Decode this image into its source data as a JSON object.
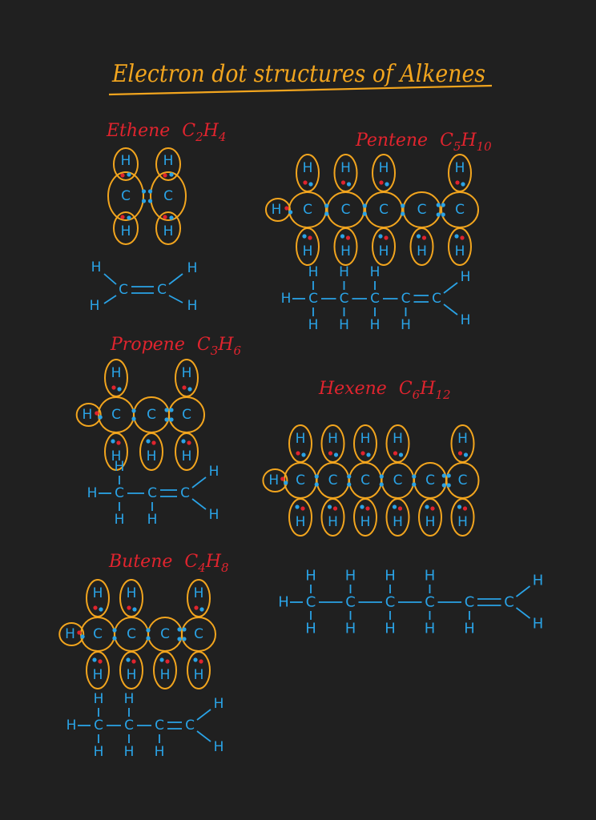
{
  "title": "Electron dot structures of Alkenes",
  "molecules": [
    {
      "id": "ethene",
      "name": "Ethene",
      "formula": {
        "c": "C",
        "csub": "2",
        "h": "H",
        "hsub": "4"
      }
    },
    {
      "id": "pentene",
      "name": "Pentene",
      "formula": {
        "c": "C",
        "csub": "5",
        "h": "H",
        "hsub": "10"
      }
    },
    {
      "id": "propene",
      "name": "Propene",
      "formula": {
        "c": "C",
        "csub": "3",
        "h": "H",
        "hsub": "6"
      }
    },
    {
      "id": "hexene",
      "name": "Hexene",
      "formula": {
        "c": "C",
        "csub": "6",
        "h": "H",
        "hsub": "12"
      }
    },
    {
      "id": "butene",
      "name": "Butene",
      "formula": {
        "c": "C",
        "csub": "4",
        "h": "H",
        "hsub": "8"
      }
    }
  ],
  "atoms": {
    "carbon": "C",
    "hydrogen": "H"
  },
  "colors": {
    "background": "#202020",
    "title": "#f2a51e",
    "heading": "#e0242e",
    "atom": "#2aa3e6",
    "orbital": "#f2a51e",
    "electron_carbon": "#2aa3e6",
    "electron_hydrogen": "#e0242e"
  }
}
